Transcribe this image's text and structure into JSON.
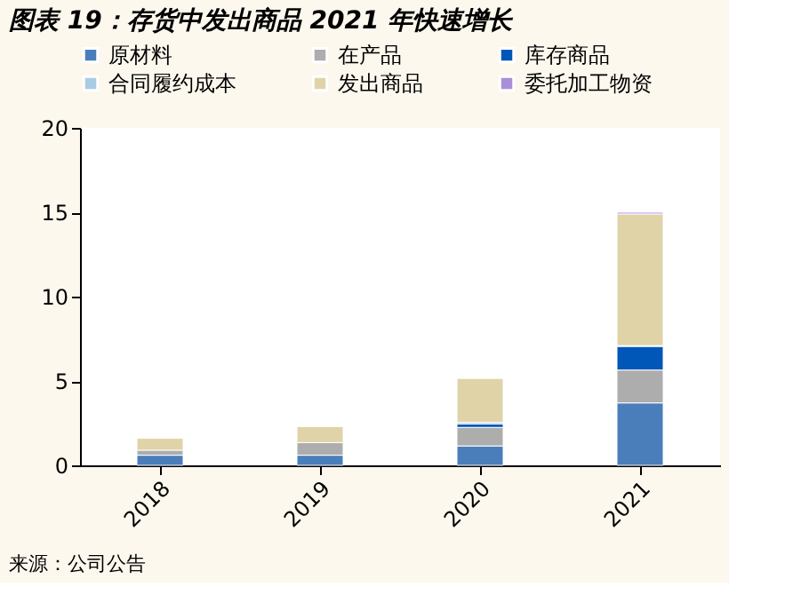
{
  "chart_data": {
    "type": "bar",
    "stacked": true,
    "title": "图表 19：存货中发出商品 2021 年快速增长",
    "categories": [
      "2018",
      "2019",
      "2020",
      "2021"
    ],
    "series": [
      {
        "name": "原材料",
        "color": "#4a7ebb",
        "values": [
          0.6,
          0.6,
          1.15,
          3.7
        ]
      },
      {
        "name": "在产品",
        "color": "#adadad",
        "values": [
          0.3,
          0.75,
          1.1,
          1.95
        ]
      },
      {
        "name": "库存商品",
        "color": "#0057b8",
        "values": [
          null,
          null,
          0.2,
          1.4
        ]
      },
      {
        "name": "合同履约成本",
        "color": "#a9cce3",
        "values": [
          null,
          null,
          0.1,
          0.05
        ]
      },
      {
        "name": "发出商品",
        "color": "#e0d3a8",
        "values": [
          0.7,
          0.95,
          2.6,
          7.8
        ]
      },
      {
        "name": "委托加工物资",
        "color": "#a98fd8",
        "values": [
          null,
          null,
          null,
          0.1
        ]
      }
    ],
    "ylim": [
      0,
      20
    ],
    "yticks": [
      0,
      5,
      10,
      15,
      20
    ],
    "grid": false,
    "legend": "top",
    "annotations": [
      "来源：公司公告"
    ]
  }
}
